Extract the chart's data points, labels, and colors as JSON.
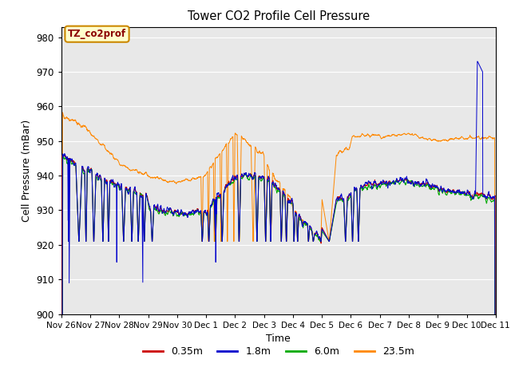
{
  "title": "Tower CO2 Profile Cell Pressure",
  "xlabel": "Time",
  "ylabel": "Cell Pressure (mBar)",
  "ylim": [
    900,
    983
  ],
  "yticks": [
    900,
    910,
    920,
    930,
    940,
    950,
    960,
    970,
    980
  ],
  "bg_color": "#e8e8e8",
  "annotation_text": "TZ_co2prof",
  "annotation_text_color": "#8b0000",
  "annotation_box_color": "#ffffcc",
  "annotation_box_edge": "#cc8800",
  "series_colors": [
    "#cc0000",
    "#0000cc",
    "#00aa00",
    "#ff8800"
  ],
  "series_labels": [
    "0.35m",
    "1.8m",
    "6.0m",
    "23.5m"
  ],
  "x_tick_labels": [
    "Nov 26",
    "Nov 27",
    "Nov 28",
    "Nov 29",
    "Nov 30",
    "Dec 1",
    "Dec 2",
    "Dec 3",
    "Dec 4",
    "Dec 5",
    "Dec 6",
    "Dec 7",
    "Dec 8",
    "Dec 9",
    "Dec 10",
    "Dec 11"
  ],
  "figsize": [
    6.4,
    4.8
  ],
  "dpi": 100
}
